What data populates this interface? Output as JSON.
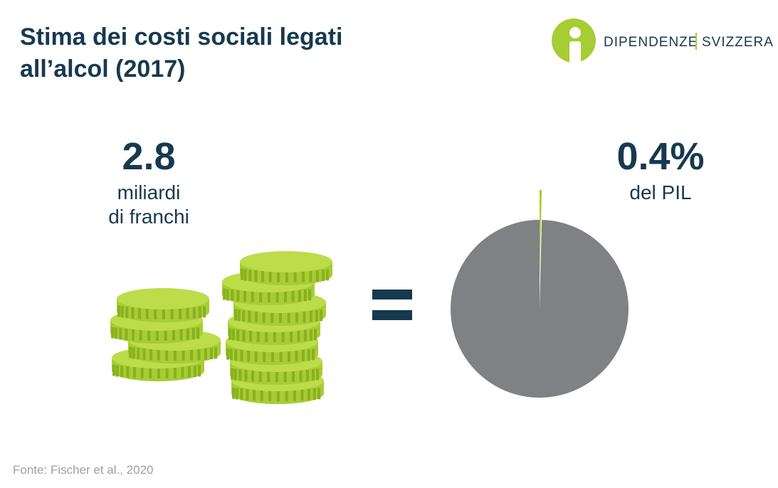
{
  "title_lines": [
    "Stima dei costi sociali legati",
    "all’alcol (2017)"
  ],
  "logo": {
    "left": "DIPENDENZE",
    "right": "SVIZZERA"
  },
  "cost": {
    "value": 2.8,
    "lines": [
      "miliardi",
      "di franchi"
    ]
  },
  "chart_data": {
    "type": "pie",
    "values": [
      0.4,
      99.6
    ],
    "value_labels": [
      "0.4%",
      null
    ],
    "colors": [
      "#a6cd34",
      "#808184"
    ],
    "label": "del PIL"
  },
  "source": "Fonte: Fischer et al., 2020"
}
